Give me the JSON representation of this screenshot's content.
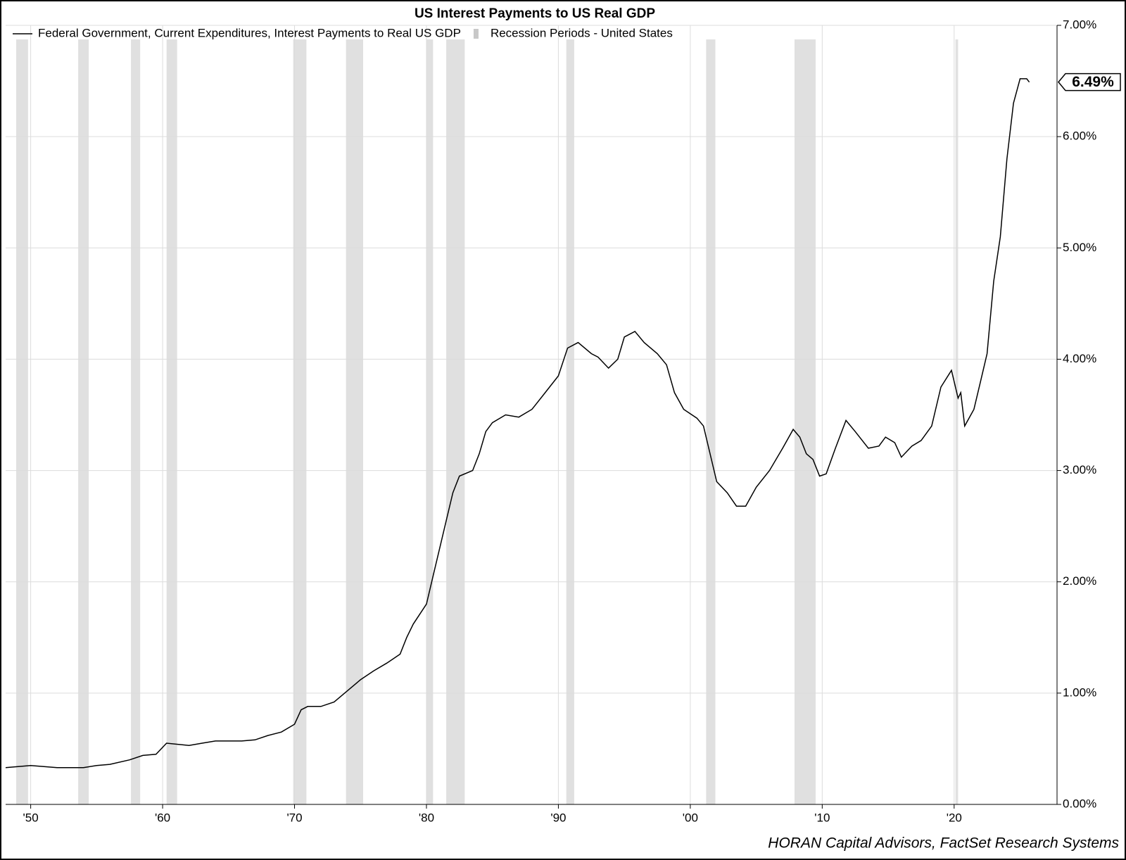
{
  "chart_data": {
    "type": "line",
    "title": "US Interest Payments to US Real GDP",
    "source": "HORAN Capital Advisors, FactSet Research Systems",
    "grid": true,
    "legend": "top-left",
    "xlim": [
      1948.1,
      2027.8
    ],
    "ylim": [
      0,
      7
    ],
    "xticks": [
      {
        "value": 1950,
        "label": "'50"
      },
      {
        "value": 1960,
        "label": "'60"
      },
      {
        "value": 1970,
        "label": "'70"
      },
      {
        "value": 1980,
        "label": "'80"
      },
      {
        "value": 1990,
        "label": "'90"
      },
      {
        "value": 2000,
        "label": "'00"
      },
      {
        "value": 2010,
        "label": "'10"
      },
      {
        "value": 2020,
        "label": "'20"
      }
    ],
    "yticks": [
      {
        "value": 0,
        "label": "0.00%"
      },
      {
        "value": 1,
        "label": "1.00%"
      },
      {
        "value": 2,
        "label": "2.00%"
      },
      {
        "value": 3,
        "label": "3.00%"
      },
      {
        "value": 4,
        "label": "4.00%"
      },
      {
        "value": 5,
        "label": "5.00%"
      },
      {
        "value": 6,
        "label": "6.00%"
      },
      {
        "value": 7,
        "label": "7.00%"
      }
    ],
    "recessions": {
      "name": "Recession Periods - United States",
      "color": "#e0e0e0",
      "periods": [
        [
          1948.9,
          1949.8
        ],
        [
          1953.6,
          1954.4
        ],
        [
          1957.6,
          1958.3
        ],
        [
          1960.3,
          1961.1
        ],
        [
          1969.9,
          1970.9
        ],
        [
          1973.9,
          1975.2
        ],
        [
          1980.0,
          1980.5
        ],
        [
          1981.5,
          1982.9
        ],
        [
          1990.6,
          1991.2
        ],
        [
          2001.2,
          2001.9
        ],
        [
          2007.9,
          2009.5
        ],
        [
          2020.1,
          2020.3
        ]
      ]
    },
    "series": [
      {
        "name": "Federal Government, Current Expenditures, Interest Payments to Real US GDP",
        "color": "#000000",
        "x": [
          1948.1,
          1950,
          1952,
          1954,
          1955,
          1956,
          1957.5,
          1958.5,
          1959.5,
          1960.3,
          1962,
          1963,
          1964,
          1966,
          1967,
          1968,
          1969,
          1970,
          1970.5,
          1971,
          1972,
          1973,
          1974,
          1975,
          1976,
          1977,
          1978,
          1978.5,
          1979,
          1980,
          1980.5,
          1981,
          1981.5,
          1982,
          1982.5,
          1983.5,
          1984,
          1984.5,
          1985,
          1986,
          1987,
          1988,
          1989,
          1990,
          1990.7,
          1991.5,
          1992.5,
          1993,
          1993.8,
          1994.5,
          1995,
          1995.8,
          1996.5,
          1997.5,
          1998.2,
          1998.8,
          1999.5,
          2000.5,
          2001,
          2001.5,
          2002,
          2002.8,
          2003.5,
          2004.2,
          2005,
          2006,
          2007,
          2007.8,
          2008.3,
          2008.8,
          2009.3,
          2009.8,
          2010.3,
          2011,
          2011.8,
          2012.5,
          2013.5,
          2014.3,
          2014.8,
          2015.5,
          2016,
          2016.8,
          2017.5,
          2018.3,
          2019,
          2019.8,
          2020.3,
          2020.5,
          2020.8,
          2021.5,
          2022,
          2022.5,
          2023,
          2023.5,
          2024,
          2024.5,
          2025,
          2025.5,
          2025.7
        ],
        "values": [
          0.33,
          0.35,
          0.33,
          0.33,
          0.35,
          0.36,
          0.4,
          0.44,
          0.45,
          0.55,
          0.53,
          0.55,
          0.57,
          0.57,
          0.58,
          0.62,
          0.65,
          0.72,
          0.85,
          0.88,
          0.88,
          0.92,
          1.02,
          1.12,
          1.2,
          1.27,
          1.35,
          1.5,
          1.62,
          1.8,
          2.05,
          2.3,
          2.55,
          2.8,
          2.95,
          3.0,
          3.15,
          3.35,
          3.43,
          3.5,
          3.48,
          3.55,
          3.7,
          3.85,
          4.1,
          4.15,
          4.05,
          4.02,
          3.92,
          4.0,
          4.2,
          4.25,
          4.15,
          4.05,
          3.95,
          3.7,
          3.55,
          3.47,
          3.4,
          3.15,
          2.9,
          2.8,
          2.68,
          2.68,
          2.85,
          3.0,
          3.2,
          3.37,
          3.3,
          3.15,
          3.1,
          2.95,
          2.97,
          3.2,
          3.45,
          3.35,
          3.2,
          3.22,
          3.3,
          3.25,
          3.12,
          3.22,
          3.27,
          3.4,
          3.75,
          3.9,
          3.65,
          3.7,
          3.4,
          3.55,
          3.8,
          4.05,
          4.7,
          5.1,
          5.8,
          6.3,
          6.52,
          6.52,
          6.49
        ],
        "value_labels": [
          null,
          null,
          null,
          null,
          null,
          null,
          null,
          null,
          null,
          null,
          null,
          null,
          null,
          null,
          null,
          null,
          null,
          null,
          null,
          null,
          null,
          null,
          null,
          null,
          null,
          null,
          null,
          null,
          null,
          null,
          null,
          null,
          null,
          null,
          null,
          null,
          null,
          null,
          null,
          null,
          null,
          null,
          null,
          null,
          null,
          null,
          null,
          null,
          null,
          null,
          null,
          null,
          null,
          null,
          null,
          null,
          null,
          null,
          null,
          null,
          null,
          null,
          null,
          null,
          null,
          null,
          null,
          null,
          null,
          null,
          null,
          null,
          null,
          null,
          null,
          null,
          null,
          null,
          null,
          null,
          null,
          null,
          null,
          null,
          null,
          null,
          null,
          null,
          null,
          null,
          null,
          null,
          null,
          null,
          null,
          null,
          null,
          null,
          "6.49%"
        ]
      }
    ]
  }
}
